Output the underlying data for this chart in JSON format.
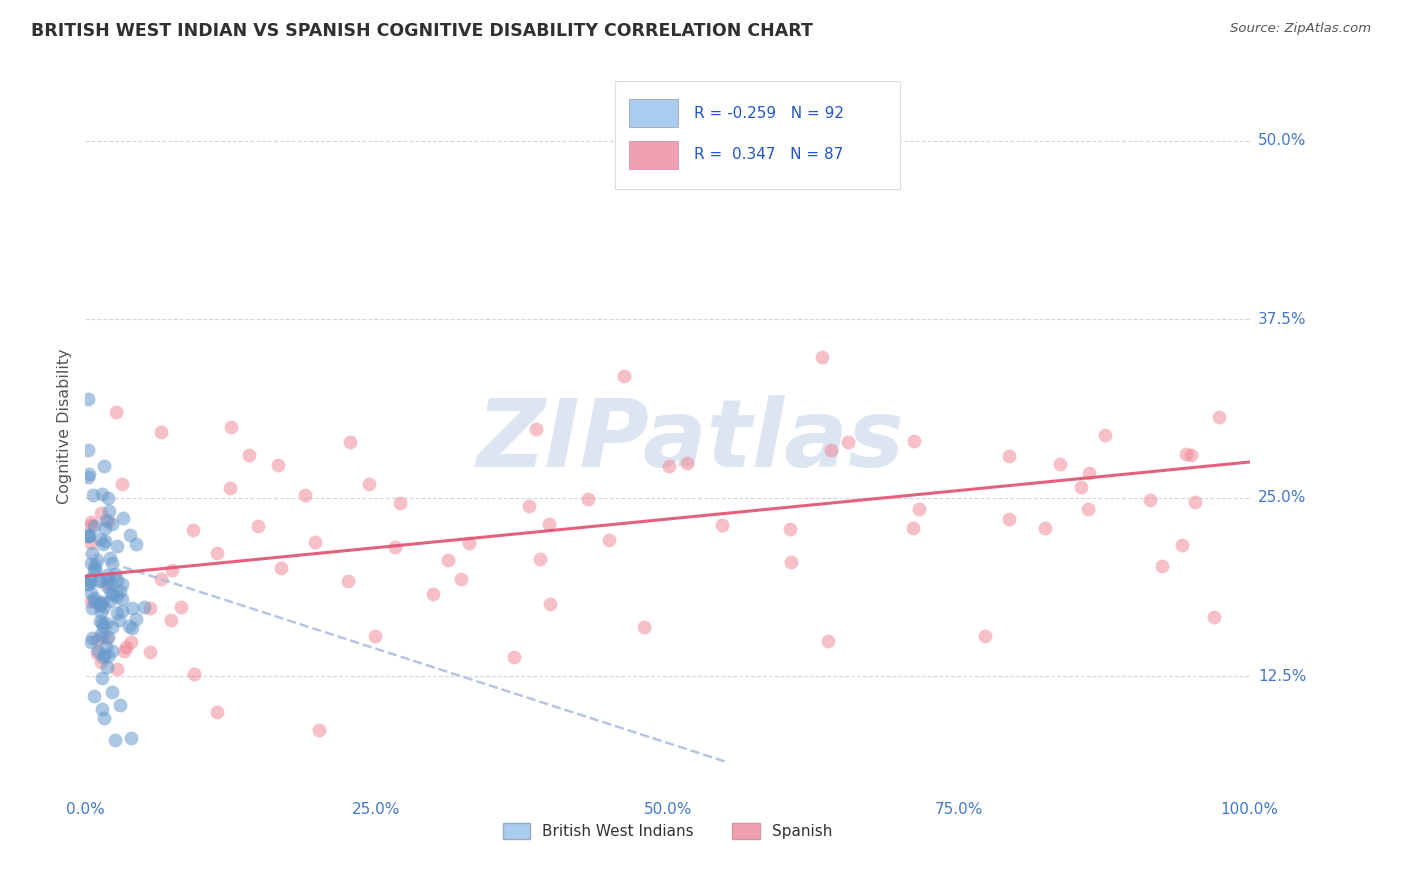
{
  "title": "BRITISH WEST INDIAN VS SPANISH COGNITIVE DISABILITY CORRELATION CHART",
  "source": "Source: ZipAtlas.com",
  "ylabel": "Cognitive Disability",
  "xlim": [
    0.0,
    1.0
  ],
  "ylim": [
    0.04,
    0.56
  ],
  "ytick_labels": [
    "12.5%",
    "25.0%",
    "37.5%",
    "50.0%"
  ],
  "ytick_values": [
    0.125,
    0.25,
    0.375,
    0.5
  ],
  "xtick_labels": [
    "0.0%",
    "25.0%",
    "50.0%",
    "75.0%",
    "100.0%"
  ],
  "xtick_values": [
    0.0,
    0.25,
    0.5,
    0.75,
    1.0
  ],
  "blue_scatter_color": "#6699cc",
  "pink_scatter_color": "#f08090",
  "blue_line_color": "#aabbdd",
  "pink_line_color": "#e05070",
  "pink_trend_x0": 0.0,
  "pink_trend_x1": 1.0,
  "pink_trend_y0": 0.195,
  "pink_trend_y1": 0.275,
  "blue_trend_x0": 0.0,
  "blue_trend_x1": 0.55,
  "blue_trend_y0": 0.21,
  "blue_trend_y1": 0.065,
  "watermark_text": "ZIPatlas",
  "watermark_color": "#c5d5e8",
  "background_color": "#ffffff",
  "grid_color": "#cccccc",
  "title_color": "#303030",
  "axis_tick_color": "#4477cc",
  "right_label_color": "#4477cc",
  "legend_R1": "R = -0.259",
  "legend_N1": "N = 92",
  "legend_R2": "R =  0.347",
  "legend_N2": "N = 87",
  "legend_color1": "#aaccee",
  "legend_color2": "#f0a0b0",
  "legend_text_color": "#2255cc",
  "source_color": "#555555"
}
